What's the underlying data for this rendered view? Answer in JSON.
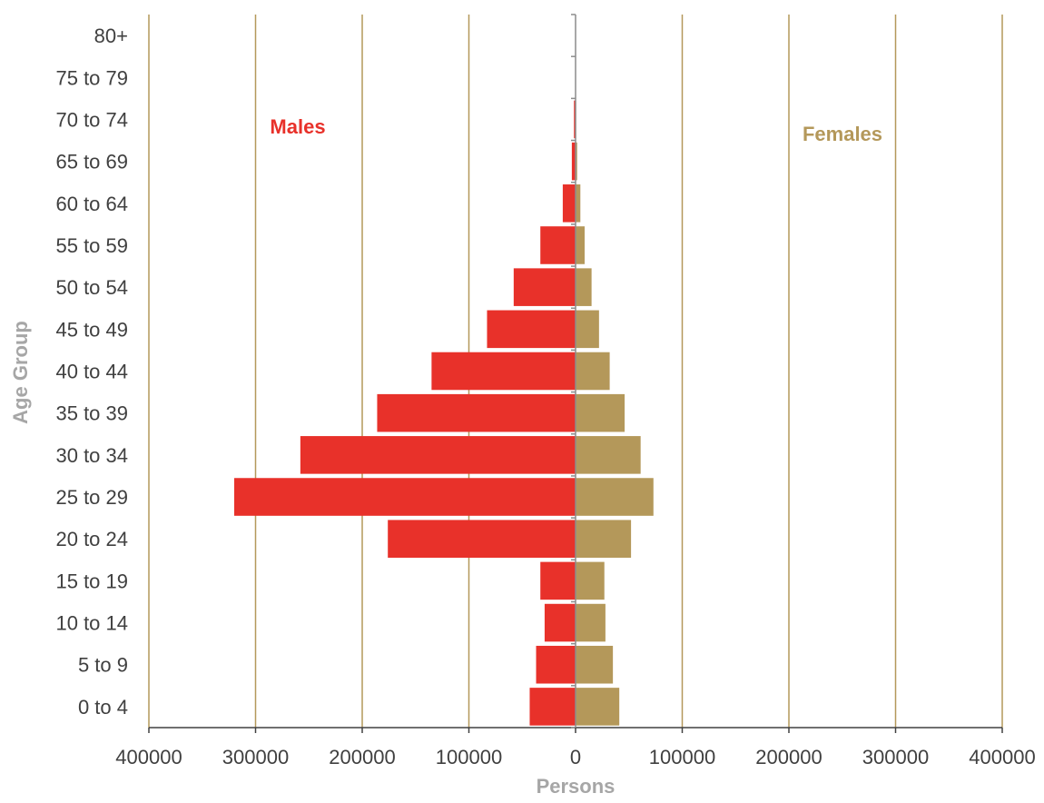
{
  "chart_data": {
    "type": "bar",
    "orientation": "horizontal",
    "variant": "population-pyramid",
    "categories": [
      "0 to 4",
      "5 to 9",
      "10 to 14",
      "15 to 19",
      "20 to 24",
      "25 to 29",
      "30 to 34",
      "35 to 39",
      "40 to 44",
      "45 to 49",
      "50 to 54",
      "55 to 59",
      "60 to 64",
      "65 to 69",
      "70 to 74",
      "75 to 79",
      "80+"
    ],
    "series": [
      {
        "name": "Males",
        "color": "#e8312a",
        "values": [
          43000,
          37000,
          29000,
          33000,
          176000,
          320000,
          258000,
          186000,
          135000,
          83000,
          58000,
          33000,
          12000,
          3500,
          1500,
          300,
          200
        ]
      },
      {
        "name": "Females",
        "color": "#b4985a",
        "values": [
          41000,
          35000,
          28000,
          27000,
          52000,
          73000,
          61000,
          46000,
          32000,
          22000,
          15000,
          8500,
          4500,
          1500,
          500,
          200,
          100
        ]
      }
    ],
    "xlim": [
      -400000,
      400000
    ],
    "xticks": [
      -400000,
      -300000,
      -200000,
      -100000,
      0,
      100000,
      200000,
      300000,
      400000
    ],
    "xtick_labels": [
      "400000",
      "300000",
      "200000",
      "100000",
      "0",
      "100000",
      "200000",
      "300000",
      "400000"
    ],
    "xlabel": "Persons",
    "ylabel": "Age Group",
    "annotations": [
      {
        "text": "Males",
        "color": "#e8312a"
      },
      {
        "text": "Females",
        "color": "#b4985a"
      }
    ],
    "grid": true,
    "gridline_color": "#b4985a",
    "legend": "none"
  }
}
